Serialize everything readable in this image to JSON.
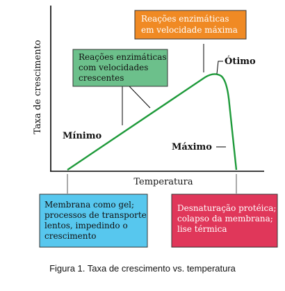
{
  "axes": {
    "ylabel": "Taxa de crescimento",
    "xlabel": "Temperatura"
  },
  "points": {
    "minimo": "Mínimo",
    "otimo": "Ótimo",
    "maximo": "Máximo"
  },
  "boxes": {
    "max_speed": {
      "lines": [
        "Reações enzimáticas",
        "em velocidade máxima"
      ],
      "color": "#f08a24"
    },
    "increasing": {
      "lines": [
        "Reações enzimáticas",
        "com velocidades",
        "crescentes"
      ],
      "color": "#6cc08b"
    },
    "gel": {
      "lines": [
        "Membrana como gel;",
        "processos de transporte",
        "lentos, impedindo o",
        "crescimento"
      ],
      "color": "#57c7ee"
    },
    "denature": {
      "lines": [
        "Desnaturação protéica;",
        "colapso da membrana;",
        "lise térmica"
      ],
      "color": "#e0375a"
    }
  },
  "colors": {
    "curve": "#1e9a3a"
  },
  "caption": "Figura 1. Taxa de crescimento vs. temperatura"
}
